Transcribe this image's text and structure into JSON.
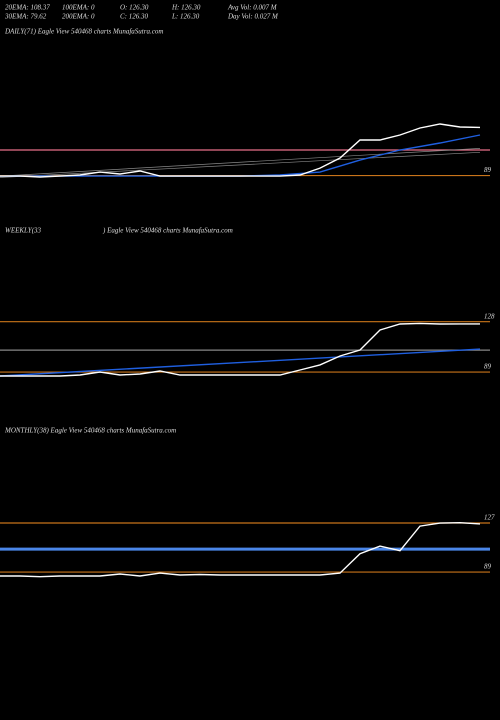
{
  "header": {
    "rows": [
      [
        "20EMA: 108.37",
        "100EMA: 0",
        "O: 126.30",
        "H: 126.30",
        "Avg Vol: 0.007 M"
      ],
      [
        "30EMA: 79.62",
        "200EMA: 0",
        "C: 126.30",
        "L: 126.30",
        "Day Vol: 0.027 M"
      ]
    ]
  },
  "panels": [
    {
      "title": "DAILY(71) Eagle  View  540468  charts MunafaSutra.com",
      "ylim": [
        84,
        194
      ],
      "levels": [
        {
          "value": 89,
          "label": "89",
          "color": "#c8741a"
        },
        {
          "value": 108.8,
          "color": "#e8708a"
        }
      ],
      "series": [
        {
          "color": "#888888",
          "values": [
            88.6,
            110
          ]
        },
        {
          "color": "#888888",
          "values": [
            87.5,
            107
          ]
        },
        {
          "color": "#1f5fe0",
          "values": [
            88.6,
            88.6,
            88.6,
            88.6,
            88.6,
            88.6,
            88.6,
            89.4,
            91.7,
            101,
            108.8,
            114.2,
            120.4
          ]
        },
        {
          "color": "#ffffff",
          "values": [
            88.6,
            88.6,
            87.9,
            88.6,
            89.4,
            91.7,
            90.2,
            92.5,
            88.6,
            88.6,
            88.6,
            88.6,
            88.6,
            88.6,
            88.6,
            89.4,
            94.8,
            102.6,
            116.5,
            116.5,
            120.4,
            125.8,
            128.9,
            126.6,
            126.3
          ]
        }
      ]
    },
    {
      "title": "WEEKLY(33",
      "title2": ") Eagle  View  540468  charts MunafaSutra.com",
      "ylim": [
        84,
        194
      ],
      "levels": [
        {
          "value": 128,
          "label": "128",
          "color": "#c8741a"
        },
        {
          "value": 89,
          "label": "89",
          "color": "#c8741a"
        },
        {
          "value": 106,
          "color": "#888888"
        }
      ],
      "series": [
        {
          "color": "#1f5fe0",
          "values": [
            85.9,
            106.8
          ]
        },
        {
          "color": "#ffffff",
          "values": [
            85.9,
            85.9,
            85.9,
            85.9,
            86.7,
            89,
            86.7,
            87.5,
            89.8,
            86.7,
            86.7,
            86.7,
            86.7,
            86.7,
            86.7,
            90.6,
            94.5,
            101.4,
            106.1,
            121.6,
            126.2,
            126.7,
            126.2,
            126.3,
            126.3
          ]
        }
      ]
    },
    {
      "title": "MONTHLY(38) Eagle  View  540468  charts MunafaSutra.com",
      "ylim": [
        84,
        194
      ],
      "levels": [
        {
          "value": 127,
          "label": "127",
          "color": "#c8741a"
        },
        {
          "value": 89,
          "label": "89",
          "color": "#c8741a"
        },
        {
          "value": 106.8,
          "color": "#4a86e8"
        }
      ],
      "series": [
        {
          "color": "#ffffff",
          "values": [
            85.9,
            85.9,
            85.4,
            85.9,
            85.9,
            85.9,
            87.5,
            85.9,
            88.2,
            86.7,
            87.1,
            86.7,
            86.7,
            86.7,
            86.7,
            86.7,
            86.7,
            88.2,
            103.2,
            109.1,
            105.5,
            124.6,
            126.9,
            127.2,
            126.3
          ]
        }
      ]
    }
  ]
}
